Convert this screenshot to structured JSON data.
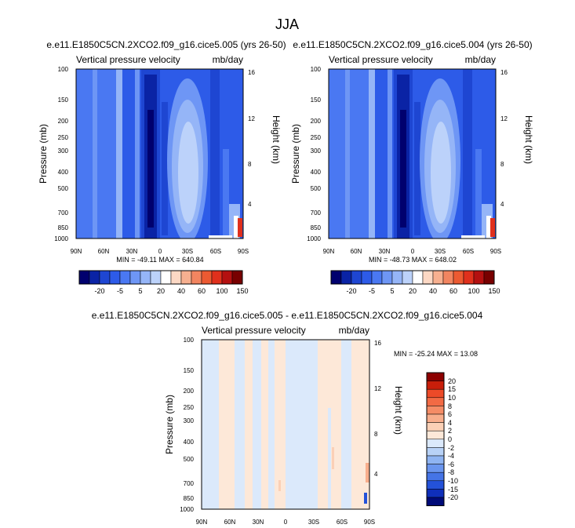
{
  "figure_title": "JJA",
  "chart_data": [
    {
      "type": "heatmap",
      "title": "e.e11.E1850C5CN.2XCO2.f09_g16.cice5.005 (yrs 26-50)",
      "left_label": "Vertical pressure velocity",
      "right_label": "mb/day",
      "xlabel": "",
      "ylabel": "Pressure (mb)",
      "ylabel_right": "Height (km)",
      "x_ticks": [
        "90N",
        "60N",
        "30N",
        "0",
        "30S",
        "60S",
        "90S"
      ],
      "y_ticks": [
        "100",
        "150",
        "200",
        "250",
        "300",
        "400",
        "500",
        "700",
        "850",
        "1000"
      ],
      "y_ticks_right": [
        "16",
        "12",
        "8",
        "4"
      ],
      "stats": "MIN = -49.11   MAX = 640.84",
      "colorbar_labels": [
        "-20",
        "-5",
        "5",
        "20",
        "40",
        "60",
        "100",
        "150"
      ],
      "colorbar_colors": [
        "#00006e",
        "#0a23a5",
        "#1e46d2",
        "#2d5be8",
        "#4a78f2",
        "#6e96f5",
        "#95b5f7",
        "#bcd2fa",
        "#ffffff",
        "#fcd8c4",
        "#f7b090",
        "#f28560",
        "#ec5a32",
        "#e0301c",
        "#b41010",
        "#780000"
      ]
    },
    {
      "type": "heatmap",
      "title": "e.e11.E1850C5CN.2XCO2.f09_g16.cice5.004 (yrs 26-50)",
      "left_label": "Vertical pressure velocity",
      "right_label": "mb/day",
      "xlabel": "",
      "ylabel": "Pressure (mb)",
      "ylabel_right": "Height (km)",
      "x_ticks": [
        "90N",
        "60N",
        "30N",
        "0",
        "30S",
        "60S",
        "90S"
      ],
      "y_ticks": [
        "100",
        "150",
        "200",
        "250",
        "300",
        "400",
        "500",
        "700",
        "850",
        "1000"
      ],
      "y_ticks_right": [
        "16",
        "12",
        "8",
        "4"
      ],
      "stats": "MIN = -48.73   MAX = 648.02",
      "colorbar_labels": [
        "-20",
        "-5",
        "5",
        "20",
        "40",
        "60",
        "100",
        "150"
      ],
      "colorbar_colors": [
        "#00006e",
        "#0a23a5",
        "#1e46d2",
        "#2d5be8",
        "#4a78f2",
        "#6e96f5",
        "#95b5f7",
        "#bcd2fa",
        "#ffffff",
        "#fcd8c4",
        "#f7b090",
        "#f28560",
        "#ec5a32",
        "#e0301c",
        "#b41010",
        "#780000"
      ]
    },
    {
      "type": "heatmap",
      "title": "e.e11.E1850C5CN.2XCO2.f09_g16.cice5.005 - e.e11.E1850C5CN.2XCO2.f09_g16.cice5.004",
      "left_label": "Vertical pressure velocity",
      "right_label": "mb/day",
      "xlabel": "",
      "ylabel": "Pressure (mb)",
      "ylabel_right": "Height (km)",
      "x_ticks": [
        "90N",
        "60N",
        "30N",
        "0",
        "30S",
        "60S",
        "90S"
      ],
      "y_ticks": [
        "100",
        "150",
        "200",
        "250",
        "300",
        "400",
        "500",
        "700",
        "850",
        "1000"
      ],
      "y_ticks_right": [
        "16",
        "12",
        "8",
        "4"
      ],
      "stats": "MIN = -25.24   MAX =  13.08",
      "colorbar_labels": [
        "20",
        "15",
        "10",
        "8",
        "6",
        "4",
        "2",
        "0",
        "-2",
        "-4",
        "-6",
        "-8",
        "-10",
        "-15",
        "-20"
      ],
      "colorbar_colors": [
        "#8c0000",
        "#c81e0a",
        "#ec4a28",
        "#f26a44",
        "#f58c66",
        "#f8ae8c",
        "#fbd0b6",
        "#fde8d8",
        "#dbe9fb",
        "#b8d2f7",
        "#8fb4f2",
        "#6a95ee",
        "#4574e6",
        "#2452d9",
        "#0f2fba",
        "#000a78"
      ]
    }
  ]
}
